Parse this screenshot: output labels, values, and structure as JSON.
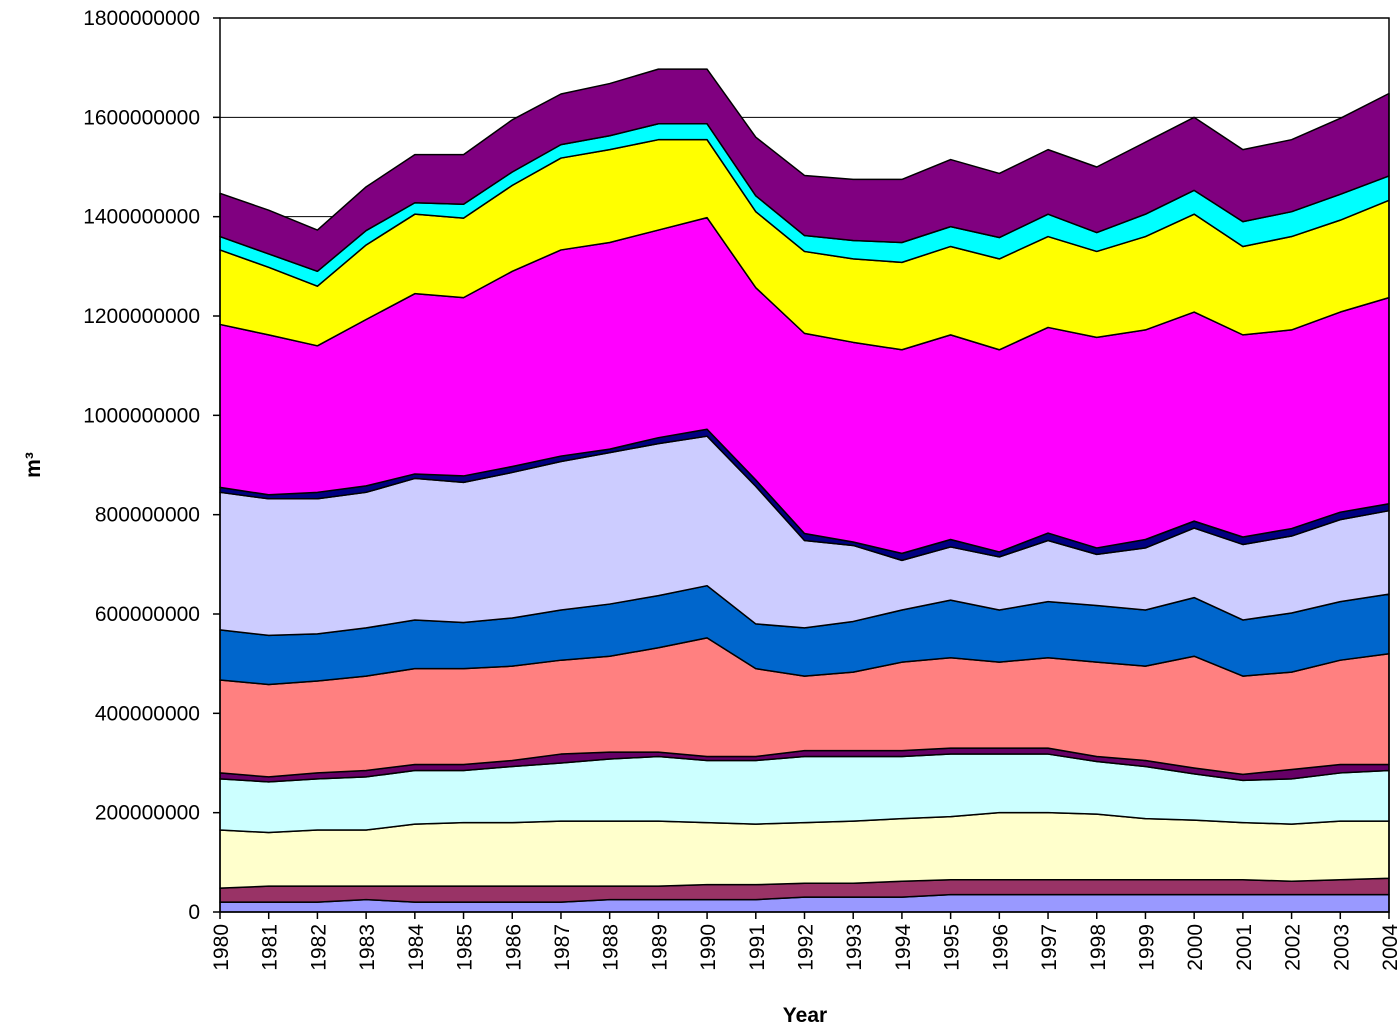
{
  "chart_data": {
    "type": "stacked_area",
    "xlabel": "Year",
    "ylabel": "m³",
    "x": [
      1980,
      1981,
      1982,
      1983,
      1984,
      1985,
      1986,
      1987,
      1988,
      1989,
      1990,
      1991,
      1992,
      1993,
      1994,
      1995,
      1996,
      1997,
      1998,
      1999,
      2000,
      2001,
      2002,
      2003,
      2004
    ],
    "xlim": [
      1980,
      2004
    ],
    "ylim": [
      0,
      1800000000
    ],
    "yticks": [
      0,
      200000000,
      400000000,
      600000000,
      800000000,
      1000000000,
      1200000000,
      1400000000,
      1600000000,
      1800000000
    ],
    "grid": true,
    "series": [
      {
        "color": "#9999ff",
        "values": [
          20000000,
          20000000,
          20000000,
          25000000,
          20000000,
          20000000,
          20000000,
          20000000,
          25000000,
          25000000,
          25000000,
          25000000,
          30000000,
          30000000,
          30000000,
          35000000,
          35000000,
          35000000,
          35000000,
          35000000,
          35000000,
          35000000,
          35000000,
          35000000,
          35000000
        ]
      },
      {
        "color": "#993366",
        "values": [
          28000000,
          32000000,
          32000000,
          27000000,
          32000000,
          32000000,
          32000000,
          32000000,
          27000000,
          27000000,
          30000000,
          30000000,
          28000000,
          28000000,
          32000000,
          30000000,
          30000000,
          30000000,
          30000000,
          30000000,
          30000000,
          30000000,
          27000000,
          30000000,
          33000000
        ]
      },
      {
        "color": "#ffffcc",
        "values": [
          117000000,
          108000000,
          113000000,
          113000000,
          125000000,
          128000000,
          128000000,
          131000000,
          131000000,
          131000000,
          125000000,
          122000000,
          122000000,
          125000000,
          126000000,
          127000000,
          135000000,
          135000000,
          132000000,
          123000000,
          120000000,
          115000000,
          115000000,
          118000000,
          115000000
        ]
      },
      {
        "color": "#ccffff",
        "values": [
          103000000,
          102000000,
          103000000,
          107000000,
          108000000,
          105000000,
          113000000,
          117000000,
          125000000,
          130000000,
          125000000,
          128000000,
          133000000,
          130000000,
          125000000,
          126000000,
          118000000,
          118000000,
          106000000,
          105000000,
          93000000,
          85000000,
          91000000,
          97000000,
          102000000
        ]
      },
      {
        "color": "#660066",
        "values": [
          12000000,
          10000000,
          12000000,
          13000000,
          12000000,
          12000000,
          12000000,
          18000000,
          14000000,
          9000000,
          8000000,
          8000000,
          12000000,
          12000000,
          12000000,
          12000000,
          12000000,
          12000000,
          10000000,
          12000000,
          12000000,
          12000000,
          19000000,
          17000000,
          12000000
        ]
      },
      {
        "color": "#ff8080",
        "values": [
          187000000,
          186000000,
          185000000,
          190000000,
          193000000,
          193000000,
          190000000,
          189000000,
          193000000,
          210000000,
          239000000,
          177000000,
          150000000,
          158000000,
          178000000,
          182000000,
          173000000,
          182000000,
          190000000,
          190000000,
          225000000,
          198000000,
          196000000,
          210000000,
          223000000
        ]
      },
      {
        "color": "#0066cc",
        "values": [
          101000000,
          99000000,
          95000000,
          97000000,
          98000000,
          93000000,
          97000000,
          101000000,
          105000000,
          105000000,
          105000000,
          90000000,
          97000000,
          102000000,
          105000000,
          116000000,
          105000000,
          113000000,
          114000000,
          113000000,
          118000000,
          113000000,
          119000000,
          118000000,
          120000000
        ]
      },
      {
        "color": "#ccccff",
        "values": [
          277000000,
          275000000,
          272000000,
          273000000,
          285000000,
          282000000,
          293000000,
          299000000,
          305000000,
          306000000,
          301000000,
          277000000,
          176000000,
          153000000,
          100000000,
          107000000,
          107000000,
          123000000,
          103000000,
          125000000,
          140000000,
          152000000,
          155000000,
          165000000,
          168000000
        ]
      },
      {
        "color": "#000080",
        "values": [
          10000000,
          8000000,
          13000000,
          13000000,
          9000000,
          13000000,
          12000000,
          11000000,
          7000000,
          12000000,
          14000000,
          13000000,
          14000000,
          7000000,
          14000000,
          15000000,
          10000000,
          15000000,
          13000000,
          17000000,
          14000000,
          15000000,
          15000000,
          15000000,
          14000000
        ]
      },
      {
        "color": "#ff00ff",
        "values": [
          328000000,
          322000000,
          295000000,
          335000000,
          363000000,
          359000000,
          393000000,
          415000000,
          416000000,
          418000000,
          426000000,
          387000000,
          403000000,
          402000000,
          410000000,
          412000000,
          407000000,
          414000000,
          424000000,
          422000000,
          421000000,
          407000000,
          400000000,
          403000000,
          415000000
        ]
      },
      {
        "color": "#ffff00",
        "values": [
          150000000,
          136000000,
          120000000,
          150000000,
          160000000,
          160000000,
          173000000,
          185000000,
          187000000,
          182000000,
          157000000,
          153000000,
          165000000,
          168000000,
          176000000,
          178000000,
          183000000,
          183000000,
          173000000,
          188000000,
          197000000,
          178000000,
          188000000,
          185000000,
          196000000
        ]
      },
      {
        "color": "#00ffff",
        "values": [
          27000000,
          27000000,
          30000000,
          29000000,
          23000000,
          28000000,
          27000000,
          27000000,
          28000000,
          32000000,
          32000000,
          32000000,
          32000000,
          37000000,
          40000000,
          40000000,
          43000000,
          45000000,
          38000000,
          45000000,
          48000000,
          50000000,
          50000000,
          52000000,
          49000000
        ]
      },
      {
        "color": "#800080",
        "values": [
          87000000,
          88000000,
          83000000,
          88000000,
          97000000,
          100000000,
          105000000,
          102000000,
          105000000,
          110000000,
          110000000,
          118000000,
          121000000,
          123000000,
          127000000,
          135000000,
          129000000,
          130000000,
          132000000,
          145000000,
          147000000,
          145000000,
          145000000,
          153000000,
          166000000
        ]
      }
    ]
  }
}
